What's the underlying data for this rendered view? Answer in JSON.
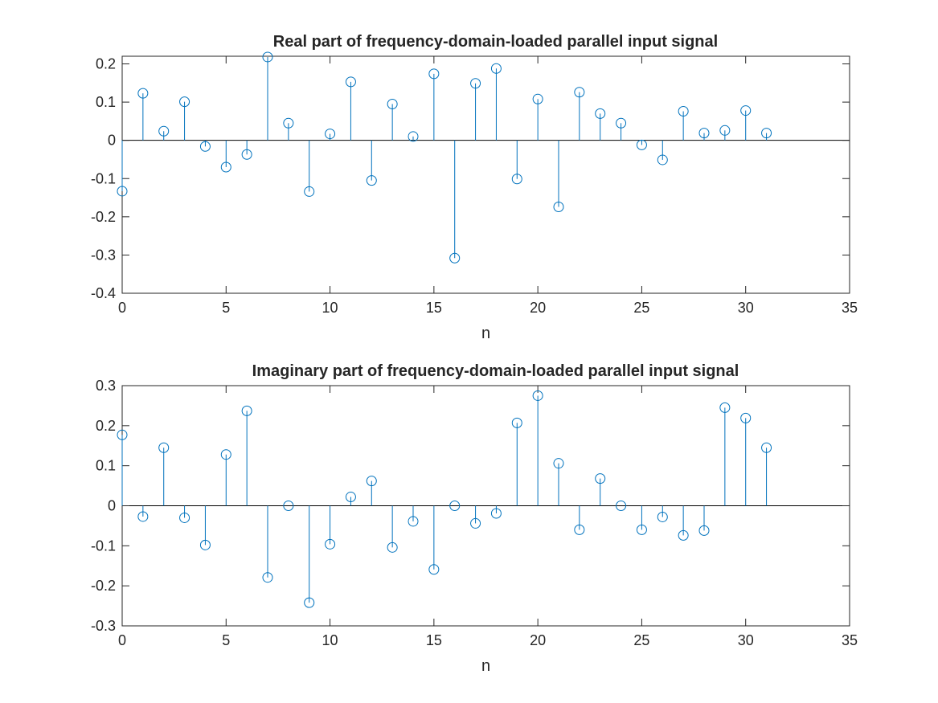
{
  "chart_data": [
    {
      "type": "stem",
      "title": "Real part of frequency-domain-loaded parallel input signal",
      "xlabel": "n",
      "ylabel": "",
      "xlim": [
        0,
        35
      ],
      "ylim": [
        -0.4,
        0.22
      ],
      "xticks": [
        0,
        5,
        10,
        15,
        20,
        25,
        30,
        35
      ],
      "xtick_labels": [
        "0",
        "5",
        "10",
        "15",
        "20",
        "25",
        "30",
        "35"
      ],
      "yticks": [
        0.2,
        0.1,
        0,
        -0.1,
        -0.2,
        -0.3,
        -0.4
      ],
      "ytick_labels": [
        "0.2",
        "0.1",
        "0",
        "-0.1",
        "-0.2",
        "-0.3",
        "-0.4"
      ],
      "color": "#0072BD",
      "grid": false,
      "x": [
        0,
        1,
        2,
        3,
        4,
        5,
        6,
        7,
        8,
        9,
        10,
        11,
        12,
        13,
        14,
        15,
        16,
        17,
        18,
        19,
        20,
        21,
        22,
        23,
        24,
        25,
        26,
        27,
        28,
        29,
        30,
        31
      ],
      "y": [
        -0.133,
        0.123,
        0.024,
        0.101,
        -0.016,
        -0.07,
        -0.037,
        0.218,
        0.045,
        -0.134,
        0.017,
        0.153,
        -0.105,
        0.095,
        0.01,
        0.174,
        -0.308,
        0.149,
        0.188,
        -0.101,
        0.108,
        -0.174,
        0.126,
        0.07,
        0.045,
        -0.012,
        -0.051,
        0.076,
        0.019,
        0.026,
        0.078,
        0.019
      ]
    },
    {
      "type": "stem",
      "title": "Imaginary part of frequency-domain-loaded parallel input signal",
      "xlabel": "n",
      "ylabel": "",
      "xlim": [
        0,
        35
      ],
      "ylim": [
        -0.3,
        0.3
      ],
      "xticks": [
        0,
        5,
        10,
        15,
        20,
        25,
        30,
        35
      ],
      "xtick_labels": [
        "0",
        "5",
        "10",
        "15",
        "20",
        "25",
        "30",
        "35"
      ],
      "yticks": [
        0.3,
        0.2,
        0.1,
        0,
        -0.1,
        -0.2,
        -0.3
      ],
      "ytick_labels": [
        "0.3",
        "0.2",
        "0.1",
        "0",
        "-0.1",
        "-0.2",
        "-0.3"
      ],
      "color": "#0072BD",
      "grid": false,
      "x": [
        0,
        1,
        2,
        3,
        4,
        5,
        6,
        7,
        8,
        9,
        10,
        11,
        12,
        13,
        14,
        15,
        16,
        17,
        18,
        19,
        20,
        21,
        22,
        23,
        24,
        25,
        26,
        27,
        28,
        29,
        30,
        31
      ],
      "y": [
        0.177,
        -0.027,
        0.145,
        -0.03,
        -0.098,
        0.128,
        0.237,
        -0.179,
        0.0,
        -0.242,
        -0.096,
        0.022,
        0.062,
        -0.104,
        -0.039,
        -0.159,
        0.0,
        -0.044,
        -0.019,
        0.207,
        0.275,
        0.106,
        -0.06,
        0.068,
        0.0,
        -0.06,
        -0.028,
        -0.074,
        -0.062,
        0.245,
        0.219,
        0.145
      ]
    }
  ]
}
